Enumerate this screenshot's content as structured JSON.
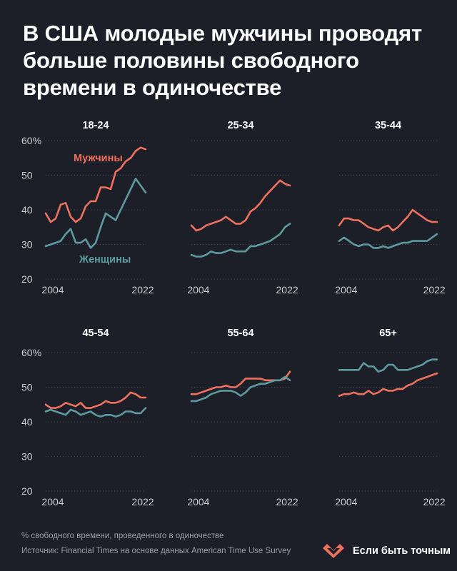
{
  "title": "В США молодые мужчины проводят больше половины свободного времени в одиночестве",
  "footer": {
    "note": "% свободного времени, проведенного в одиночестве",
    "source": "Источник: Financial Times на основе данных American Time Use Survey"
  },
  "brand": {
    "name": "Если быть точным",
    "icon": "heart-logo-icon"
  },
  "colors": {
    "background": "#1c1f27",
    "men": "#f0705e",
    "women": "#5d9a9f",
    "grid": "#4a4d55",
    "axis_text": "#c9cbd0"
  },
  "chart_data": [
    {
      "type": "line",
      "title": "18-24",
      "x_tick_labels": [
        "2004",
        "2022"
      ],
      "y_ticks": [
        20,
        30,
        40,
        50,
        60
      ],
      "y_tick_labels": [
        "20",
        "30",
        "40",
        "50",
        "60%"
      ],
      "ylim": [
        20,
        60
      ],
      "xlim": [
        2003,
        2023
      ],
      "x": [
        2003,
        2004,
        2005,
        2006,
        2007,
        2008,
        2009,
        2010,
        2011,
        2012,
        2013,
        2014,
        2015,
        2016,
        2017,
        2018,
        2019,
        2020,
        2021,
        2022,
        2023
      ],
      "series": [
        {
          "name": "Мужчины",
          "values": [
            39,
            36.5,
            37.5,
            41.5,
            42,
            38,
            36.5,
            37.5,
            41,
            42.5,
            42.5,
            46.5,
            46.5,
            46,
            51,
            52,
            54,
            55,
            57,
            58,
            57.5
          ]
        },
        {
          "name": "Женщины",
          "values": [
            29.5,
            30,
            30.5,
            31,
            33,
            34.5,
            30.5,
            30.5,
            31.5,
            29,
            30.5,
            35,
            39,
            38,
            37,
            40,
            43,
            46,
            49,
            47,
            45
          ]
        }
      ],
      "labels": [
        {
          "text": "Мужчины",
          "series": "Мужчины"
        },
        {
          "text": "Женщины",
          "series": "Женщины"
        }
      ]
    },
    {
      "type": "line",
      "title": "25-34",
      "x_tick_labels": [
        "2004",
        "2022"
      ],
      "ylim": [
        20,
        60
      ],
      "xlim": [
        2003,
        2023
      ],
      "x": [
        2003,
        2004,
        2005,
        2006,
        2007,
        2008,
        2009,
        2010,
        2011,
        2012,
        2013,
        2014,
        2015,
        2016,
        2017,
        2018,
        2019,
        2020,
        2021,
        2022,
        2023
      ],
      "series": [
        {
          "name": "Мужчины",
          "values": [
            35.5,
            34,
            34.5,
            35.5,
            36,
            36.5,
            37,
            38,
            37,
            36,
            36,
            37,
            39.5,
            40.5,
            42,
            44,
            45.5,
            47,
            48.5,
            47.5,
            47
          ]
        },
        {
          "name": "Женщины",
          "values": [
            27,
            26.5,
            26.5,
            27,
            28,
            27.5,
            27.5,
            28,
            28.5,
            28,
            28,
            28,
            29.5,
            29.5,
            30,
            30.5,
            31,
            32,
            33,
            35,
            36
          ]
        }
      ]
    },
    {
      "type": "line",
      "title": "35-44",
      "x_tick_labels": [
        "2004",
        "2022"
      ],
      "ylim": [
        20,
        60
      ],
      "xlim": [
        2003,
        2023
      ],
      "x": [
        2003,
        2004,
        2005,
        2006,
        2007,
        2008,
        2009,
        2010,
        2011,
        2012,
        2013,
        2014,
        2015,
        2016,
        2017,
        2018,
        2019,
        2020,
        2021,
        2022,
        2023
      ],
      "series": [
        {
          "name": "Мужчины",
          "values": [
            35.5,
            37.5,
            37.5,
            37,
            37,
            36,
            35,
            34.5,
            34,
            35,
            35.5,
            34,
            35,
            36.5,
            38,
            40,
            39,
            38,
            37,
            36.5,
            36.5
          ]
        },
        {
          "name": "Женщины",
          "values": [
            31,
            32,
            31,
            30,
            29.5,
            30,
            30,
            29,
            29,
            29.5,
            29,
            29.5,
            30,
            30.5,
            30.5,
            31,
            31,
            31,
            31,
            32,
            33
          ]
        }
      ]
    },
    {
      "type": "line",
      "title": "45-54",
      "x_tick_labels": [
        "2004",
        "2022"
      ],
      "y_ticks": [
        20,
        30,
        40,
        50,
        60
      ],
      "y_tick_labels": [
        "20",
        "30",
        "40",
        "50",
        "60%"
      ],
      "ylim": [
        20,
        60
      ],
      "xlim": [
        2003,
        2023
      ],
      "x": [
        2003,
        2004,
        2005,
        2006,
        2007,
        2008,
        2009,
        2010,
        2011,
        2012,
        2013,
        2014,
        2015,
        2016,
        2017,
        2018,
        2019,
        2020,
        2021,
        2022,
        2023
      ],
      "series": [
        {
          "name": "Мужчины",
          "values": [
            45,
            44,
            44,
            44.5,
            45.5,
            45,
            44.5,
            45.5,
            44,
            44,
            44.5,
            45,
            46,
            45.5,
            45.5,
            46,
            47,
            48.5,
            48,
            47,
            47
          ]
        },
        {
          "name": "Женщины",
          "values": [
            43,
            43.5,
            43,
            42.5,
            42,
            43.5,
            43,
            42,
            42.5,
            43,
            42,
            41.5,
            42,
            42,
            41.5,
            42,
            43,
            43,
            42.5,
            42.5,
            44
          ]
        }
      ]
    },
    {
      "type": "line",
      "title": "55-64",
      "x_tick_labels": [
        "2004",
        "2022"
      ],
      "ylim": [
        20,
        60
      ],
      "xlim": [
        2003,
        2023
      ],
      "x": [
        2003,
        2004,
        2005,
        2006,
        2007,
        2008,
        2009,
        2010,
        2011,
        2012,
        2013,
        2014,
        2015,
        2016,
        2017,
        2018,
        2019,
        2020,
        2021,
        2022,
        2023
      ],
      "series": [
        {
          "name": "Мужчины",
          "values": [
            48,
            48,
            48.5,
            49,
            49.5,
            50,
            50,
            50.5,
            50,
            50,
            51,
            52.5,
            52.5,
            52.5,
            52.5,
            52,
            52,
            52,
            52,
            52.5,
            54.5
          ]
        },
        {
          "name": "Женщины",
          "values": [
            46,
            46,
            46.5,
            47,
            48,
            48.5,
            49,
            49,
            49,
            48.5,
            47.5,
            48.5,
            50,
            50.5,
            51,
            51,
            51.5,
            52,
            52,
            53,
            52
          ]
        }
      ]
    },
    {
      "type": "line",
      "title": "65+",
      "x_tick_labels": [
        "2004",
        "2022"
      ],
      "ylim": [
        20,
        60
      ],
      "xlim": [
        2003,
        2023
      ],
      "x": [
        2003,
        2004,
        2005,
        2006,
        2007,
        2008,
        2009,
        2010,
        2011,
        2012,
        2013,
        2014,
        2015,
        2016,
        2017,
        2018,
        2019,
        2020,
        2021,
        2022,
        2023
      ],
      "series": [
        {
          "name": "Мужчины",
          "values": [
            47.5,
            48,
            48,
            48.5,
            48,
            48,
            49,
            48,
            48.5,
            49.5,
            49,
            49,
            49.5,
            49.5,
            50.5,
            51,
            52,
            52.5,
            53,
            53.5,
            54
          ]
        },
        {
          "name": "Женщины",
          "values": [
            55,
            55,
            55,
            55,
            55,
            57,
            56,
            56,
            54.5,
            55,
            56.5,
            56.5,
            55,
            55,
            55,
            55.5,
            56,
            56.5,
            57.5,
            58,
            58
          ]
        }
      ]
    }
  ]
}
